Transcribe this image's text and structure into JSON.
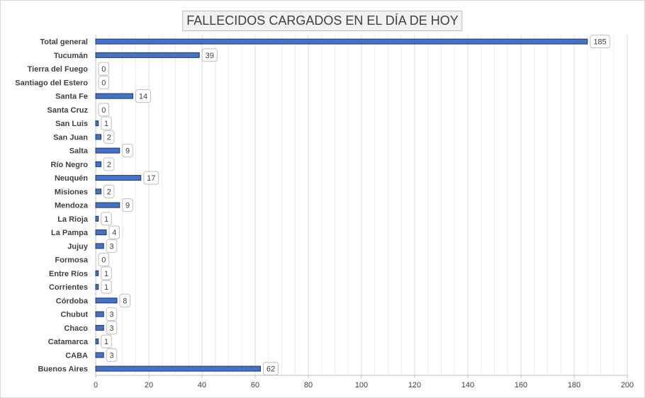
{
  "chart_data": {
    "type": "bar",
    "orientation": "horizontal",
    "title": "FALLECIDOS CARGADOS EN EL DÍA DE HOY",
    "categories": [
      "Total general",
      "Tucumán",
      "Tierra del Fuego",
      "Santiago del Estero",
      "Santa Fe",
      "Santa Cruz",
      "San Luis",
      "San Juan",
      "Salta",
      "Río Negro",
      "Neuquén",
      "Misiones",
      "Mendoza",
      "La Rioja",
      "La Pampa",
      "Jujuy",
      "Formosa",
      "Entre Ríos",
      "Corrientes",
      "Córdoba",
      "Chubut",
      "Chaco",
      "Catamarca",
      "CABA",
      "Buenos Aires"
    ],
    "values": [
      185,
      39,
      0,
      0,
      14,
      0,
      1,
      2,
      9,
      2,
      17,
      2,
      9,
      1,
      4,
      3,
      0,
      1,
      1,
      8,
      3,
      3,
      1,
      3,
      62
    ],
    "xlim": [
      0,
      200
    ],
    "xticks": [
      0,
      20,
      40,
      60,
      80,
      100,
      120,
      140,
      160,
      180,
      200
    ],
    "grid": true,
    "legend": "none",
    "bar_color": "#4472c4",
    "bar_border": "#1f3864"
  }
}
